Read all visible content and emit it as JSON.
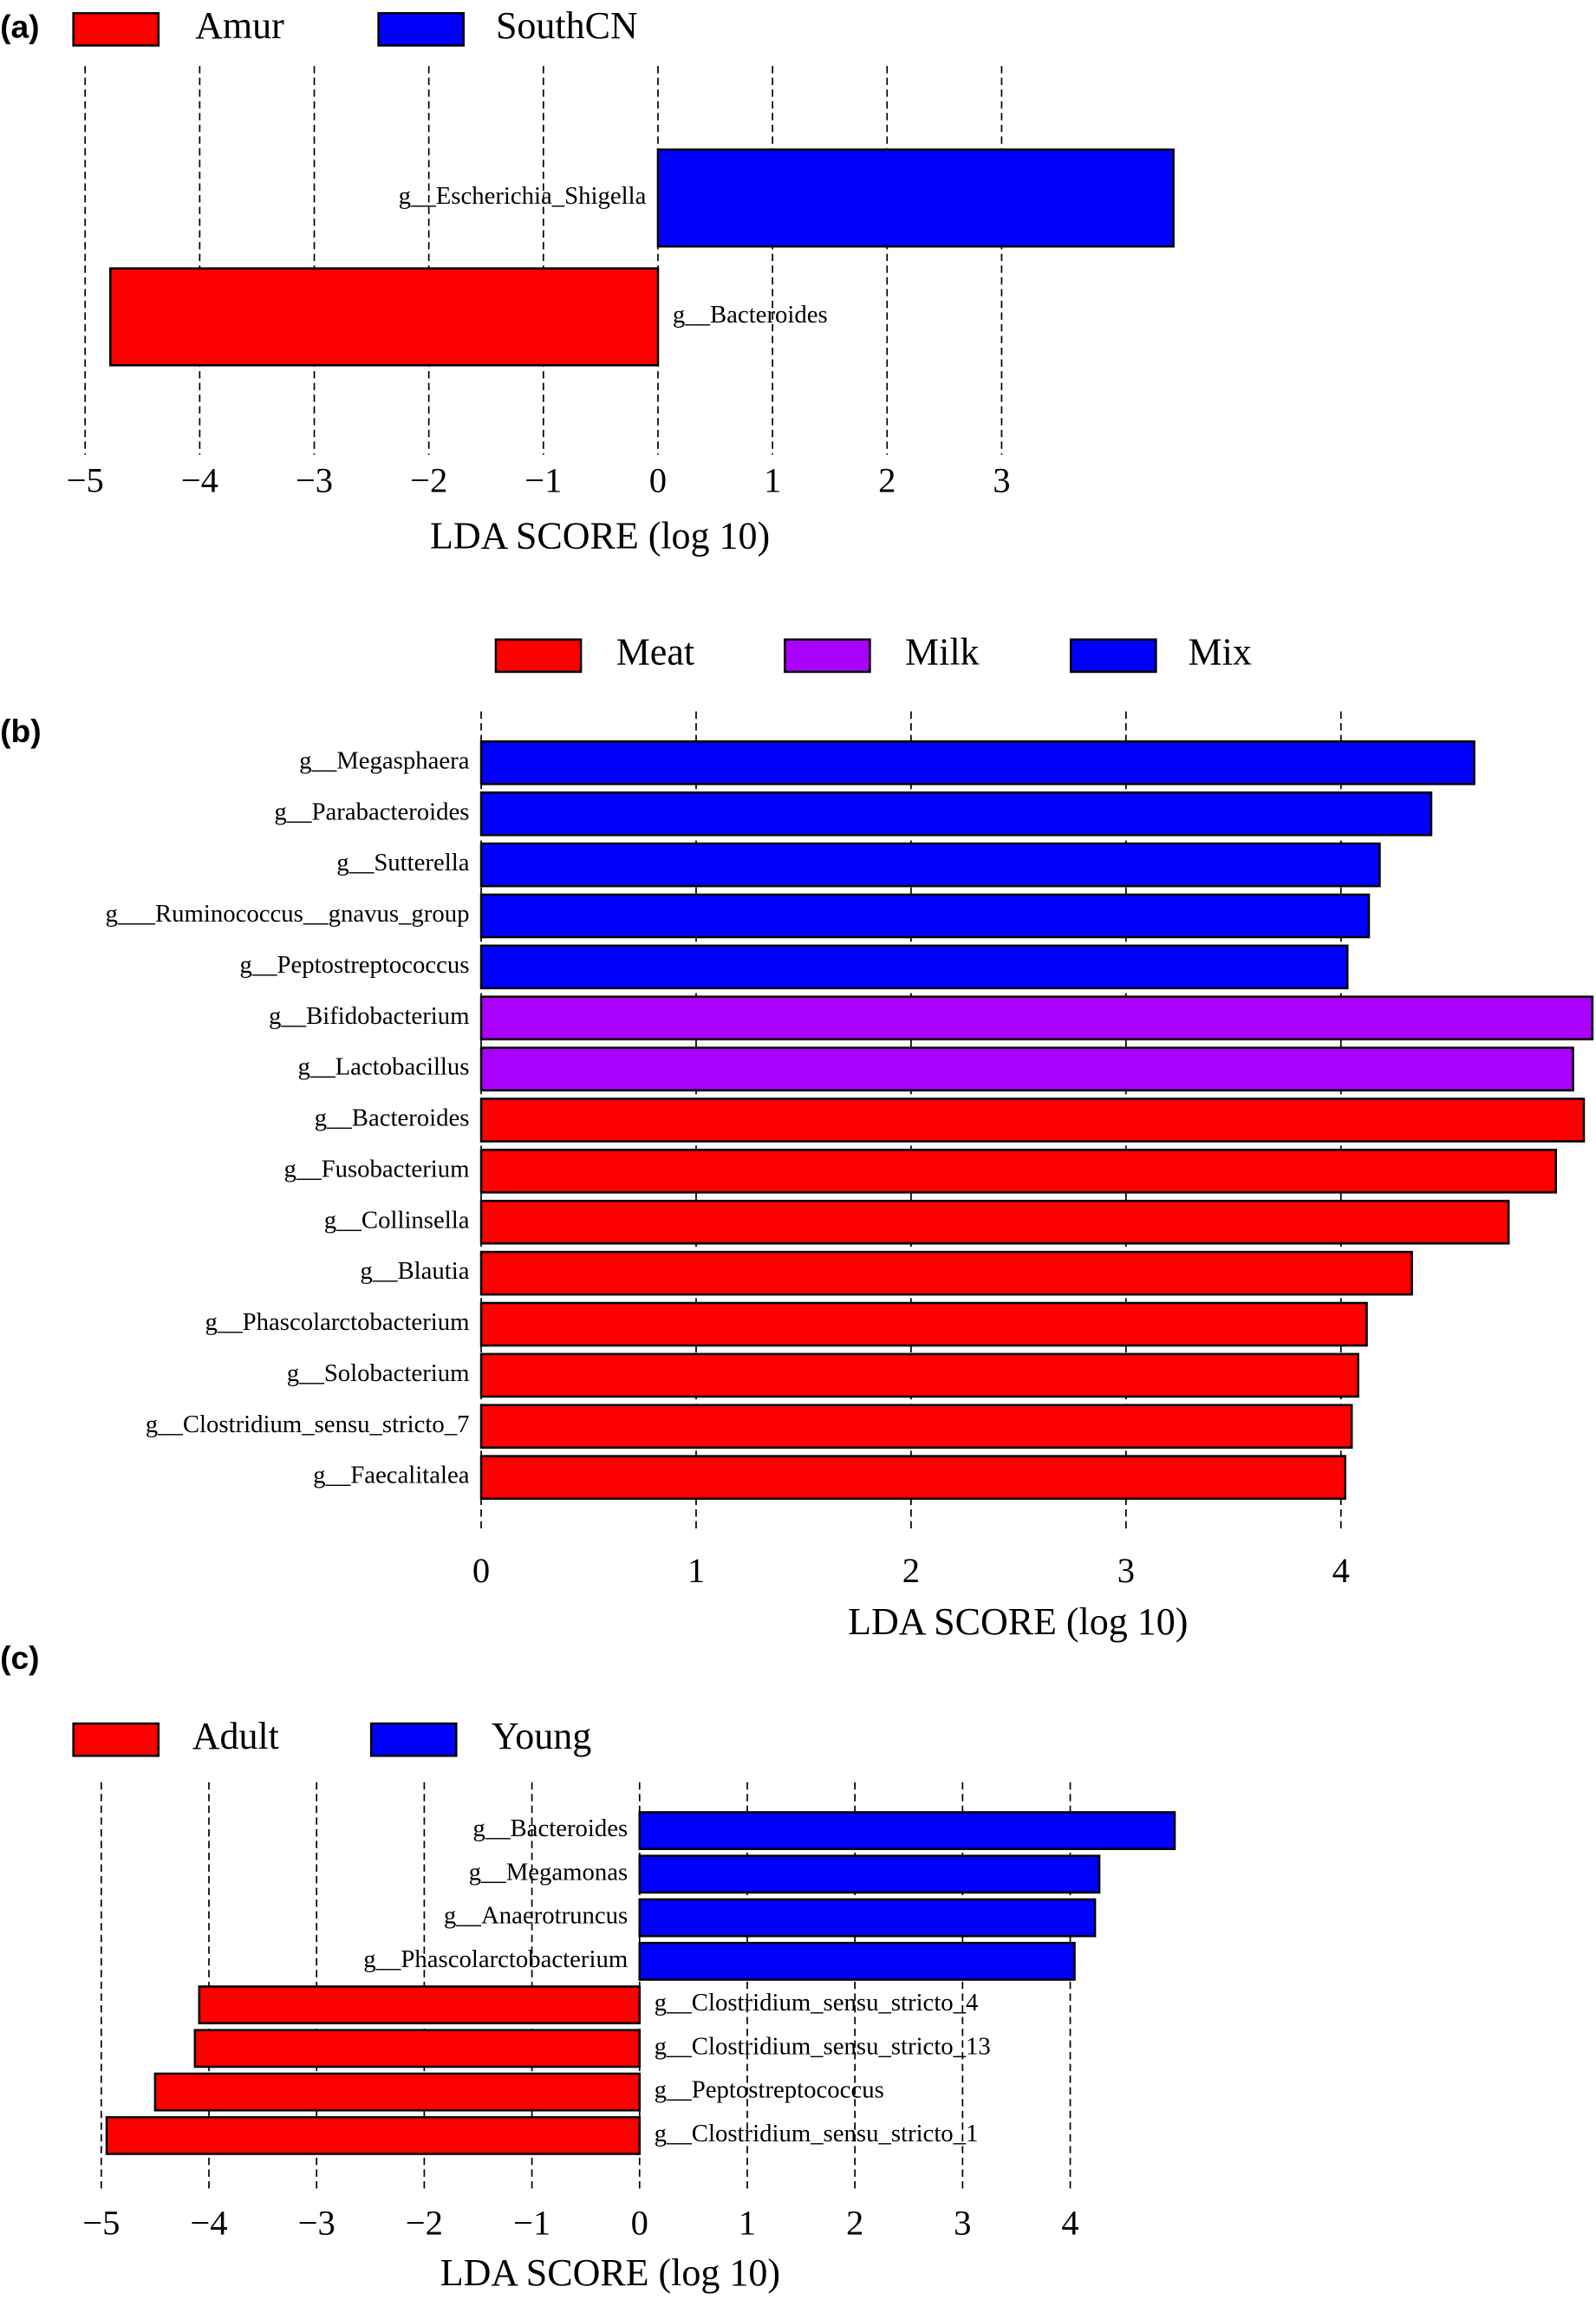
{
  "chart_data": [
    {
      "type": "bar",
      "panel_label": "(a)",
      "orientation": "horizontal",
      "categories": [
        "g__Escherichia_Shigella",
        "g__Bacteroides"
      ],
      "series": [
        {
          "name": "Amur",
          "color": "#ff0000",
          "values": [
            null,
            -4.78
          ]
        },
        {
          "name": "SouthCN",
          "color": "#0000ff",
          "values": [
            4.5,
            null
          ]
        }
      ],
      "xlabel": "LDA SCORE (log 10)",
      "xlim": [
        -5,
        4.5
      ],
      "xticks": [
        {
          "value": -5,
          "label": "−5"
        },
        {
          "value": -4,
          "label": "−4"
        },
        {
          "value": -3,
          "label": "−3"
        },
        {
          "value": -2,
          "label": "−2"
        },
        {
          "value": -1,
          "label": "−1"
        },
        0,
        1,
        2,
        3
      ],
      "grid": true
    },
    {
      "type": "bar",
      "panel_label": "(b)",
      "orientation": "horizontal",
      "categories": [
        "g__Megasphaera",
        "g__Parabacteroides",
        "g__Sutterella",
        "g___Ruminococcus__gnavus_group",
        "g__Peptostreptococcus",
        "g__Bifidobacterium",
        "g__Lactobacillus",
        "g__Bacteroides",
        "g__Fusobacterium",
        "g__Collinsella",
        "g__Blautia",
        "g__Phascolarctobacterium",
        "g__Solobacterium",
        "g__Clostridium_sensu_stricto_7",
        "g__Faecalitalea"
      ],
      "series": [
        {
          "name": "Meat",
          "color": "#ff0000",
          "values": [
            null,
            null,
            null,
            null,
            null,
            null,
            null,
            5.13,
            5.0,
            4.78,
            4.33,
            4.12,
            4.08,
            4.05,
            4.02
          ]
        },
        {
          "name": "Milk",
          "color": "#aa00ff",
          "values": [
            null,
            null,
            null,
            null,
            null,
            5.17,
            5.08,
            null,
            null,
            null,
            null,
            null,
            null,
            null,
            null
          ]
        },
        {
          "name": "Mix",
          "color": "#0000ff",
          "values": [
            4.62,
            4.42,
            4.18,
            4.13,
            4.03,
            null,
            null,
            null,
            null,
            null,
            null,
            null,
            null,
            null,
            null
          ]
        }
      ],
      "xlabel": "LDA SCORE (log 10)",
      "xlim": [
        0,
        5.2
      ],
      "xticks": [
        0,
        1,
        2,
        3,
        4
      ],
      "grid": true
    },
    {
      "type": "bar",
      "panel_label": "(c)",
      "orientation": "horizontal",
      "categories": [
        "g__Bacteroides",
        "g__Megamonas",
        "g__Anaerotruncus",
        "g__Phascolarctobacterium",
        "g__Clostridium_sensu_stricto_4",
        "g__Clostridium_sensu_stricto_13",
        "g__Peptostreptococcus",
        "g__Clostridium_sensu_stricto_1"
      ],
      "series": [
        {
          "name": "Adult",
          "color": "#ff0000",
          "values": [
            null,
            null,
            null,
            null,
            -4.09,
            -4.13,
            -4.5,
            -4.95
          ]
        },
        {
          "name": "Young",
          "color": "#0000ff",
          "values": [
            4.97,
            4.27,
            4.23,
            4.04,
            null,
            null,
            null,
            null
          ]
        }
      ],
      "xlabel": "LDA SCORE (log 10)",
      "xlim": [
        -5,
        5
      ],
      "xticks": [
        {
          "value": -5,
          "label": "−5"
        },
        {
          "value": -4,
          "label": "−4"
        },
        {
          "value": -3,
          "label": "−3"
        },
        {
          "value": -2,
          "label": "−2"
        },
        {
          "value": -1,
          "label": "−1"
        },
        0,
        1,
        2,
        3,
        4
      ],
      "grid": true
    }
  ]
}
